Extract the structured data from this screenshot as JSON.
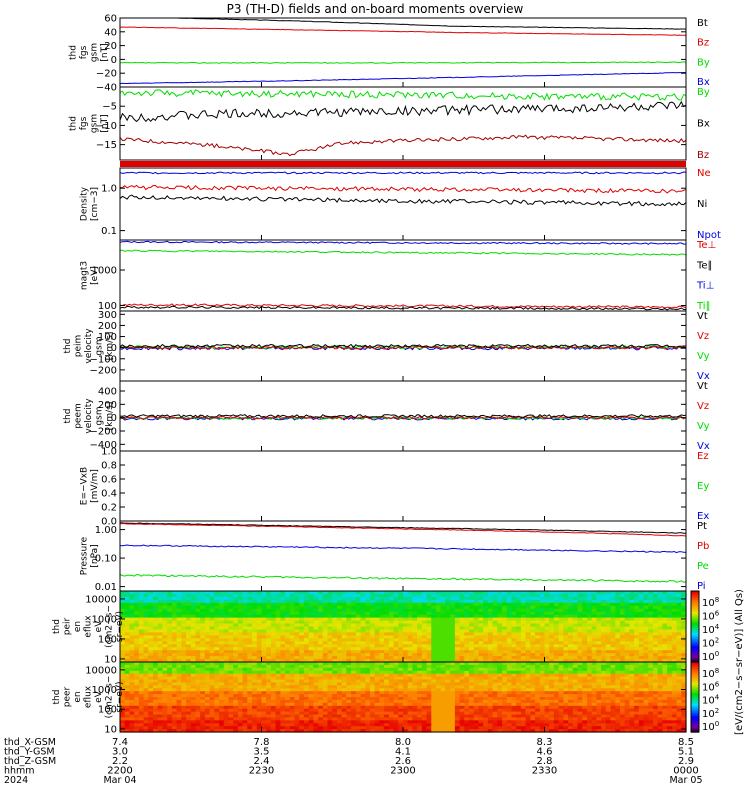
{
  "title": "P3 (TH-D) fields and on-board moments overview",
  "colors": {
    "black": "#000000",
    "red": "#e00000",
    "green": "#00dd00",
    "blue": "#0000e0",
    "darkred": "#a00000"
  },
  "chart_data": {
    "type": "line",
    "time_axis": {
      "ticks": [
        {
          "x_gsm": "7.4",
          "y_gsm": "3.0",
          "z_gsm": "2.2",
          "hhmm": "2200",
          "date": "Mar 04"
        },
        {
          "x_gsm": "7.8",
          "y_gsm": "3.5",
          "z_gsm": "2.4",
          "hhmm": "2230",
          "date": ""
        },
        {
          "x_gsm": "8.0",
          "y_gsm": "4.1",
          "z_gsm": "2.6",
          "hhmm": "2300",
          "date": ""
        },
        {
          "x_gsm": "8.3",
          "y_gsm": "4.6",
          "z_gsm": "2.8",
          "hhmm": "2330",
          "date": ""
        },
        {
          "x_gsm": "8.5",
          "y_gsm": "5.1",
          "z_gsm": "2.9",
          "hhmm": "0000",
          "date": "Mar 05"
        }
      ],
      "row_labels": [
        "thd_X-GSM",
        "thd_Y-GSM",
        "thd_Z-GSM",
        "hhmm",
        "2024"
      ]
    },
    "panels": [
      {
        "id": "fgs_gsm",
        "ylabel": [
          "thd",
          "fgs",
          "gsm",
          "[nT]"
        ],
        "ylim": [
          -40,
          60
        ],
        "log": false,
        "yticks": [
          "60",
          "40",
          "20",
          "0",
          "−20",
          "−40"
        ],
        "ytick_values": [
          60,
          40,
          20,
          0,
          -20,
          -40
        ],
        "legend": [
          {
            "name": "Bt",
            "color": "#000000"
          },
          {
            "name": "Bz",
            "color": "#e00000"
          },
          {
            "name": "By",
            "color": "#00dd00"
          },
          {
            "name": "Bx",
            "color": "#0000e0"
          }
        ],
        "series": [
          {
            "name": "Bt",
            "color": "#000000",
            "points": [
              [
                0,
                62
              ],
              [
                0.3,
                56
              ],
              [
                0.6,
                48
              ],
              [
                1,
                44
              ]
            ],
            "noise": 0.3
          },
          {
            "name": "Bz",
            "color": "#e00000",
            "points": [
              [
                0,
                47
              ],
              [
                0.3,
                43
              ],
              [
                0.6,
                39
              ],
              [
                1,
                35
              ]
            ],
            "noise": 0.3
          },
          {
            "name": "By",
            "color": "#00dd00",
            "points": [
              [
                0,
                -5
              ],
              [
                0.5,
                -5
              ],
              [
                1,
                -4
              ]
            ],
            "noise": 0.6
          },
          {
            "name": "Bx",
            "color": "#0000e0",
            "points": [
              [
                0,
                -35
              ],
              [
                0.3,
                -31
              ],
              [
                0.6,
                -26
              ],
              [
                1,
                -19
              ]
            ],
            "noise": 0.4
          }
        ]
      },
      {
        "id": "fgs_gsm_zoom",
        "ylabel": [
          "thd",
          "fgs",
          "gsm",
          "[nT]"
        ],
        "ylim": [
          -19,
          0
        ],
        "log": false,
        "yticks": [
          "−5",
          "−10",
          "−15"
        ],
        "ytick_values": [
          -5,
          -10,
          -15
        ],
        "legend": [
          {
            "name": "By",
            "color": "#00dd00"
          },
          {
            "name": "Bx",
            "color": "#000000"
          },
          {
            "name": "Bz",
            "color": "#a00000"
          }
        ],
        "series": [
          {
            "name": "By",
            "color": "#00dd00",
            "points": [
              [
                0,
                -1.5
              ],
              [
                0.5,
                -2
              ],
              [
                0.8,
                -2.5
              ],
              [
                1,
                -2.5
              ]
            ],
            "noise": 0.9
          },
          {
            "name": "Bx",
            "color": "#000000",
            "points": [
              [
                0,
                -8
              ],
              [
                0.2,
                -7
              ],
              [
                0.4,
                -6.5
              ],
              [
                0.6,
                -6
              ],
              [
                0.8,
                -5.5
              ],
              [
                1,
                -5
              ]
            ],
            "noise": 1.2
          },
          {
            "name": "Bz",
            "color": "#a00000",
            "points": [
              [
                0,
                -13.5
              ],
              [
                0.15,
                -15
              ],
              [
                0.3,
                -17.5
              ],
              [
                0.4,
                -14.5
              ],
              [
                0.7,
                -13
              ],
              [
                1,
                -14
              ]
            ],
            "noise": 0.5
          }
        ]
      },
      {
        "id": "density",
        "ylabel": [
          "Density",
          "[cm−3]"
        ],
        "ylim": [
          0.06,
          3
        ],
        "log": true,
        "yticks": [
          "1.0",
          "0.1"
        ],
        "ytick_values": [
          1,
          0.1
        ],
        "legend": [
          {
            "name": "Ne",
            "color": "#e00000"
          },
          {
            "name": "Ni",
            "color": "#000000"
          },
          {
            "name": "Npot",
            "color": "#0000e0"
          }
        ],
        "series": [
          {
            "name": "Npot",
            "color": "#0000e0",
            "points": [
              [
                0,
                2.3
              ],
              [
                1,
                2.3
              ]
            ],
            "noise": 0.02
          },
          {
            "name": "Ne",
            "color": "#e00000",
            "points": [
              [
                0,
                1.05
              ],
              [
                0.5,
                0.95
              ],
              [
                1,
                0.85
              ]
            ],
            "noise": 0.05
          },
          {
            "name": "Ni",
            "color": "#000000",
            "points": [
              [
                0,
                0.62
              ],
              [
                0.5,
                0.5
              ],
              [
                1,
                0.42
              ]
            ],
            "noise": 0.05
          }
        ]
      },
      {
        "id": "temperature",
        "ylabel": [
          "magt3",
          "[eV]"
        ],
        "ylim": [
          70,
          7000
        ],
        "log": true,
        "yticks": [
          "1000",
          "100"
        ],
        "ytick_values": [
          1000,
          100
        ],
        "legend": [
          {
            "name": "Te⊥",
            "color": "#e00000"
          },
          {
            "name": "Te∥",
            "color": "#000000"
          },
          {
            "name": "Ti⊥",
            "color": "#0000e0"
          },
          {
            "name": "Ti∥",
            "color": "#00dd00"
          }
        ],
        "series": [
          {
            "name": "Ti⊥",
            "color": "#0000e0",
            "points": [
              [
                0,
                6200
              ],
              [
                1,
                5500
              ]
            ],
            "noise": 0.02
          },
          {
            "name": "Ti∥",
            "color": "#00dd00",
            "points": [
              [
                0,
                3500
              ],
              [
                1,
                2700
              ]
            ],
            "noise": 0.02
          },
          {
            "name": "Te⊥",
            "color": "#e00000",
            "points": [
              [
                0,
                105
              ],
              [
                1,
                90
              ]
            ],
            "noise": 0.03
          },
          {
            "name": "Te∥",
            "color": "#000000",
            "points": [
              [
                0,
                90
              ],
              [
                1,
                80
              ]
            ],
            "noise": 0.03
          }
        ]
      },
      {
        "id": "peim_velocity",
        "ylabel": [
          "thd",
          "peim",
          "velocity",
          "gsm",
          "[km/s]"
        ],
        "ylim": [
          -300,
          330
        ],
        "log": false,
        "yticks": [
          "300",
          "200",
          "100",
          "0",
          "−100",
          "−200"
        ],
        "ytick_values": [
          300,
          200,
          100,
          0,
          -100,
          -200
        ],
        "legend": [
          {
            "name": "Vt",
            "color": "#000000"
          },
          {
            "name": "Vz",
            "color": "#e00000"
          },
          {
            "name": "Vy",
            "color": "#00dd00"
          },
          {
            "name": "Vx",
            "color": "#0000e0"
          }
        ],
        "series": [
          {
            "name": "Vx",
            "color": "#0000e0",
            "points": [
              [
                0,
                -5
              ],
              [
                1,
                -5
              ]
            ],
            "noise": 14
          },
          {
            "name": "Vy",
            "color": "#00dd00",
            "points": [
              [
                0,
                5
              ],
              [
                1,
                5
              ]
            ],
            "noise": 14
          },
          {
            "name": "Vz",
            "color": "#e00000",
            "points": [
              [
                0,
                0
              ],
              [
                1,
                0
              ]
            ],
            "noise": 12
          },
          {
            "name": "Vt",
            "color": "#000000",
            "points": [
              [
                0,
                15
              ],
              [
                1,
                15
              ]
            ],
            "noise": 14
          }
        ]
      },
      {
        "id": "peem_velocity",
        "ylabel": [
          "thd",
          "peem",
          "velocity",
          "gsm",
          "[km/s]"
        ],
        "ylim": [
          -500,
          550
        ],
        "log": false,
        "yticks": [
          "400",
          "200",
          "0",
          "−200",
          "−400"
        ],
        "ytick_values": [
          400,
          200,
          0,
          -200,
          -400
        ],
        "legend": [
          {
            "name": "Vt",
            "color": "#000000"
          },
          {
            "name": "Vz",
            "color": "#e00000"
          },
          {
            "name": "Vy",
            "color": "#00dd00"
          },
          {
            "name": "Vx",
            "color": "#0000e0"
          }
        ],
        "series": [
          {
            "name": "Vx",
            "color": "#0000e0",
            "points": [
              [
                0,
                -15
              ],
              [
                1,
                -15
              ]
            ],
            "noise": 20
          },
          {
            "name": "Vy",
            "color": "#00dd00",
            "points": [
              [
                0,
                -5
              ],
              [
                1,
                -5
              ]
            ],
            "noise": 20
          },
          {
            "name": "Vz",
            "color": "#e00000",
            "points": [
              [
                0,
                0
              ],
              [
                1,
                0
              ]
            ],
            "noise": 18
          },
          {
            "name": "Vt",
            "color": "#000000",
            "points": [
              [
                0,
                25
              ],
              [
                1,
                25
              ]
            ],
            "noise": 20
          }
        ]
      },
      {
        "id": "efield",
        "ylabel": [
          "E=−VxB",
          "[mV/m]"
        ],
        "ylim": [
          0,
          1
        ],
        "log": false,
        "yticks": [
          "1.0",
          "0.8",
          "0.6",
          "0.4",
          "0.2",
          "0.0"
        ],
        "ytick_values": [
          1,
          0.8,
          0.6,
          0.4,
          0.2,
          0
        ],
        "legend": [
          {
            "name": "Ez",
            "color": "#e00000"
          },
          {
            "name": "Ey",
            "color": "#00dd00"
          },
          {
            "name": "Ex",
            "color": "#0000e0"
          }
        ],
        "series": []
      },
      {
        "id": "pressure",
        "ylabel": [
          "Pressure",
          "[nPa]"
        ],
        "ylim": [
          0.007,
          2
        ],
        "log": true,
        "yticks": [
          "1.00",
          "0.10",
          "0.01"
        ],
        "ytick_values": [
          1,
          0.1,
          0.01
        ],
        "legend": [
          {
            "name": "Pt",
            "color": "#000000"
          },
          {
            "name": "Pb",
            "color": "#e00000"
          },
          {
            "name": "Pe",
            "color": "#00dd00"
          },
          {
            "name": "Pi",
            "color": "#0000e0"
          }
        ],
        "series": [
          {
            "name": "Pt",
            "color": "#000000",
            "points": [
              [
                0,
                1.7
              ],
              [
                0.4,
                1.25
              ],
              [
                1,
                0.75
              ]
            ],
            "noise": 0.01
          },
          {
            "name": "Pb",
            "color": "#e00000",
            "points": [
              [
                0,
                1.6
              ],
              [
                0.4,
                1.15
              ],
              [
                1,
                0.6
              ]
            ],
            "noise": 0.01
          },
          {
            "name": "Pi",
            "color": "#0000e0",
            "points": [
              [
                0,
                0.28
              ],
              [
                0.5,
                0.22
              ],
              [
                1,
                0.16
              ]
            ],
            "noise": 0.02
          },
          {
            "name": "Pe",
            "color": "#00dd00",
            "points": [
              [
                0,
                0.025
              ],
              [
                0.5,
                0.019
              ],
              [
                1,
                0.015
              ]
            ],
            "noise": 0.03
          }
        ]
      },
      {
        "id": "peir_spec",
        "type": "heatmap",
        "ylabel": [
          "thd",
          "peir",
          "en",
          "eflux",
          "eV",
          "(cm2−s−",
          "sr−eV)"
        ],
        "ylim": [
          7,
          25000
        ],
        "log": true,
        "yticks": [
          "10000",
          "1000",
          "100",
          "10"
        ],
        "ytick_values": [
          10000,
          1000,
          100,
          10
        ]
      },
      {
        "id": "peer_spec",
        "type": "heatmap",
        "ylabel": [
          "thd",
          "peer",
          "en",
          "eflux",
          "eV",
          "(cm2−s−",
          "sr−eV)"
        ],
        "ylim": [
          7,
          25000
        ],
        "log": true,
        "yticks": [
          "10000",
          "1000",
          "100",
          "10"
        ],
        "ytick_values": [
          10000,
          1000,
          100,
          10
        ]
      }
    ],
    "colorbar": {
      "label": "[eV/(cm2−s−sr−eV)] (All Qs)",
      "ticks": [
        "10^8",
        "10^6",
        "10^4",
        "10^2",
        "10^0"
      ],
      "ticks_top": [
        "10^8",
        "10^6",
        "10^4",
        "10^2",
        "10^0"
      ],
      "ticks_bottom": [
        "10^8",
        "10^6",
        "10^4",
        "10^2",
        "10^0"
      ]
    }
  }
}
